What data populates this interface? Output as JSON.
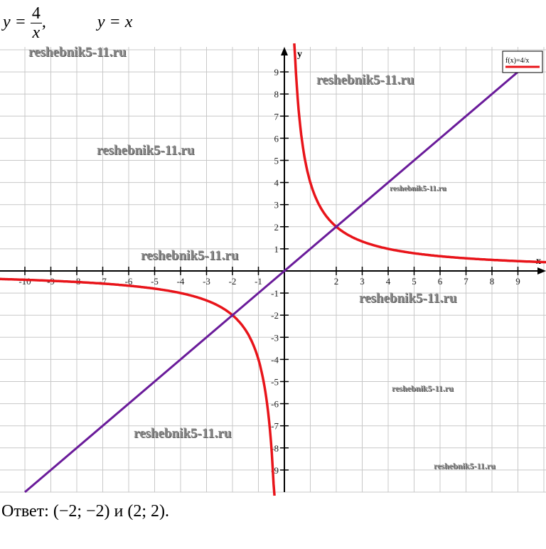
{
  "header": {
    "eq1_lhs": "y = ",
    "eq1_num": "4",
    "eq1_den": "x",
    "eq1_sep": ",",
    "eq2": "y = x"
  },
  "chart_data": {
    "type": "line",
    "xlim": [
      -11,
      10.5
    ],
    "ylim": [
      -10,
      10
    ],
    "x_axis_label": "x",
    "y_axis_label": "y",
    "x_ticks": [
      "-10",
      "-9",
      "-8",
      "-7",
      "-6",
      "-5",
      "-4",
      "-3",
      "-2",
      "-1",
      "2",
      "3",
      "4",
      "5",
      "6",
      "7",
      "8",
      "9"
    ],
    "y_ticks": [
      "9",
      "8",
      "7",
      "6",
      "5",
      "4",
      "3",
      "2",
      "1",
      "-1",
      "-2",
      "-3",
      "-4",
      "-5",
      "-6",
      "-7",
      "-8",
      "-9"
    ],
    "grid": true,
    "legend": {
      "placement": "top-right",
      "entries": [
        "f(x)=4/x"
      ]
    },
    "series": [
      {
        "name": "f(x)=4/x",
        "formula": "4/x",
        "color": "#e8141a"
      },
      {
        "formula": "x",
        "color": "#6a1b9a"
      }
    ],
    "intersections": [
      [
        -2,
        -2
      ],
      [
        2,
        2
      ]
    ]
  },
  "watermarks": [
    "reshebnik5-11.ru",
    "reshebnik5-11.ru",
    "reshebnik5-11.ru",
    "reshebnik5-11.ru",
    "reshebnik5-11.ru",
    "reshebnik5-11.ru",
    "reshebnik5-11.ru",
    "reshebnik5-11.ru",
    "reshebnik5-11.ru",
    "reshebnik5-11.ru"
  ],
  "answer": "Ответ: (−2; −2) и (2; 2)."
}
